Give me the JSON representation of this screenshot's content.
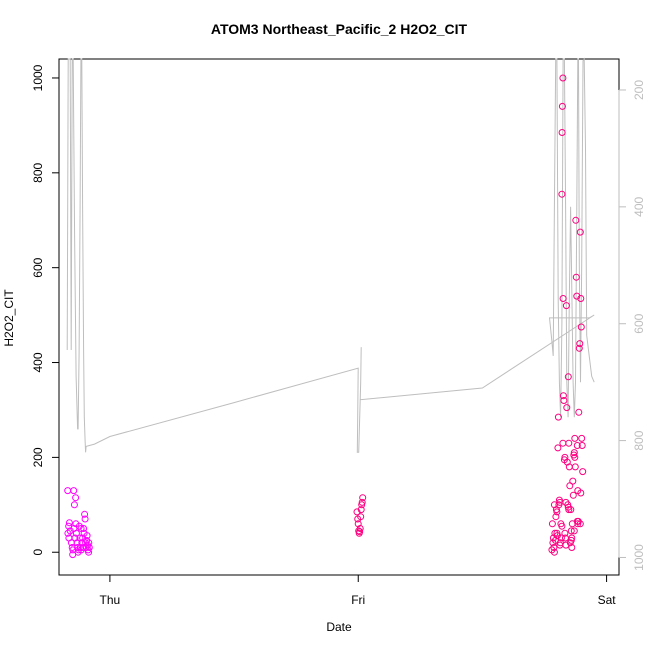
{
  "chart_data": {
    "type": "scatter",
    "title": "ATOM3 Northeast_Pacific_2 H2O2_CIT",
    "xlabel": "Date",
    "ylabel": "H2O2_CIT",
    "x_units": "days (Thu=0, Fri=1, Sat=2)",
    "xlim": [
      -0.205,
      2.05
    ],
    "ylim": [
      -48,
      1040
    ],
    "x_ticks": [
      {
        "value": 0,
        "label": "Thu"
      },
      {
        "value": 1,
        "label": "Fri"
      },
      {
        "value": 2,
        "label": "Sat"
      }
    ],
    "y_ticks": [
      0,
      200,
      400,
      600,
      800,
      1000
    ],
    "y2_label": "",
    "y2_reversed": true,
    "y2_ticks": [
      200,
      400,
      600,
      800,
      1000
    ],
    "y2_lim": [
      1030,
      147
    ],
    "grid": false,
    "legend": "none",
    "colors": {
      "points_early": "#ff00ff",
      "points_late": "#ff0080",
      "line": "#bebebe",
      "axis": "#000000"
    },
    "series": [
      {
        "kind": "points",
        "points": [
          [
            -0.17,
            130
          ],
          [
            -0.169,
            40
          ],
          [
            -0.166,
            55
          ],
          [
            -0.165,
            30
          ],
          [
            -0.163,
            62
          ],
          [
            -0.16,
            45
          ],
          [
            -0.155,
            20
          ],
          [
            -0.152,
            10
          ],
          [
            -0.15,
            -5
          ],
          [
            -0.149,
            5
          ],
          [
            -0.146,
            130
          ],
          [
            -0.145,
            50
          ],
          [
            -0.143,
            100
          ],
          [
            -0.14,
            30
          ],
          [
            -0.138,
            115
          ],
          [
            -0.137,
            60
          ],
          [
            -0.135,
            40
          ],
          [
            -0.132,
            20
          ],
          [
            -0.13,
            10
          ],
          [
            -0.128,
            0
          ],
          [
            -0.126,
            5
          ],
          [
            -0.123,
            55
          ],
          [
            -0.121,
            30
          ],
          [
            -0.119,
            10
          ],
          [
            -0.116,
            50
          ],
          [
            -0.115,
            5
          ],
          [
            -0.113,
            20
          ],
          [
            -0.11,
            30
          ],
          [
            -0.108,
            10
          ],
          [
            -0.106,
            50
          ],
          [
            -0.104,
            40
          ],
          [
            -0.102,
            80
          ],
          [
            -0.1,
            70
          ],
          [
            -0.098,
            20
          ],
          [
            -0.096,
            10
          ],
          [
            -0.094,
            25
          ],
          [
            -0.092,
            35
          ],
          [
            -0.09,
            15
          ],
          [
            -0.088,
            5
          ],
          [
            -0.086,
            0
          ],
          [
            -0.085,
            20
          ],
          [
            -0.083,
            10
          ]
        ]
      },
      {
        "kind": "points",
        "points": [
          [
            0.995,
            85
          ],
          [
            0.998,
            70
          ],
          [
            1.0,
            60
          ],
          [
            1.002,
            45
          ],
          [
            1.004,
            40
          ],
          [
            1.006,
            43
          ],
          [
            1.008,
            50
          ],
          [
            1.01,
            75
          ],
          [
            1.012,
            90
          ],
          [
            1.014,
            100
          ],
          [
            1.016,
            105
          ],
          [
            1.018,
            115
          ]
        ]
      },
      {
        "kind": "points",
        "points": [
          [
            1.78,
            5
          ],
          [
            1.782,
            60
          ],
          [
            1.784,
            20
          ],
          [
            1.786,
            30
          ],
          [
            1.788,
            10
          ],
          [
            1.79,
            0
          ],
          [
            1.792,
            40
          ],
          [
            1.794,
            25
          ],
          [
            1.796,
            75
          ],
          [
            1.798,
            90
          ],
          [
            1.8,
            85
          ],
          [
            1.802,
            35
          ],
          [
            1.804,
            220
          ],
          [
            1.806,
            285
          ],
          [
            1.808,
            100
          ],
          [
            1.81,
            110
          ],
          [
            1.812,
            105
          ],
          [
            1.814,
            20
          ],
          [
            1.816,
            60
          ],
          [
            1.818,
            30
          ],
          [
            1.82,
            755
          ],
          [
            1.821,
            885
          ],
          [
            1.822,
            940
          ],
          [
            1.824,
            1000
          ],
          [
            1.825,
            535
          ],
          [
            1.826,
            330
          ],
          [
            1.828,
            320
          ],
          [
            1.83,
            195
          ],
          [
            1.832,
            40
          ],
          [
            1.834,
            30
          ],
          [
            1.836,
            15
          ],
          [
            1.838,
            520
          ],
          [
            1.84,
            305
          ],
          [
            1.842,
            190
          ],
          [
            1.844,
            100
          ],
          [
            1.846,
            370
          ],
          [
            1.848,
            230
          ],
          [
            1.85,
            180
          ],
          [
            1.852,
            140
          ],
          [
            1.854,
            20
          ],
          [
            1.856,
            90
          ],
          [
            1.858,
            45
          ],
          [
            1.86,
            10
          ],
          [
            1.862,
            60
          ],
          [
            1.864,
            150
          ],
          [
            1.866,
            120
          ],
          [
            1.868,
            205
          ],
          [
            1.87,
            210
          ],
          [
            1.872,
            240
          ],
          [
            1.874,
            180
          ],
          [
            1.876,
            700
          ],
          [
            1.878,
            580
          ],
          [
            1.88,
            540
          ],
          [
            1.882,
            225
          ],
          [
            1.884,
            60
          ],
          [
            1.886,
            65
          ],
          [
            1.888,
            295
          ],
          [
            1.89,
            430
          ],
          [
            1.892,
            440
          ],
          [
            1.894,
            675
          ],
          [
            1.896,
            535
          ],
          [
            1.898,
            475
          ],
          [
            1.9,
            240
          ],
          [
            1.902,
            225
          ],
          [
            1.904,
            170
          ],
          [
            1.79,
            100
          ],
          [
            1.8,
            40
          ],
          [
            1.812,
            15
          ],
          [
            1.824,
            230
          ],
          [
            1.836,
            105
          ],
          [
            1.848,
            90
          ],
          [
            1.86,
            30
          ],
          [
            1.872,
            200
          ],
          [
            1.884,
            130
          ],
          [
            1.896,
            125
          ],
          [
            1.82,
            55
          ],
          [
            1.832,
            200
          ],
          [
            1.846,
            95
          ],
          [
            1.858,
            25
          ],
          [
            1.87,
            45
          ],
          [
            1.882,
            65
          ],
          [
            1.894,
            60
          ]
        ]
      },
      {
        "kind": "line",
        "axis": "y2",
        "points": [
          [
            -0.172,
            645
          ],
          [
            -0.17,
            400
          ],
          [
            -0.168,
            147
          ],
          [
            -0.165,
            147
          ],
          [
            -0.16,
            147
          ],
          [
            -0.158,
            400
          ],
          [
            -0.156,
            645
          ],
          [
            -0.154,
            400
          ],
          [
            -0.152,
            147
          ],
          [
            -0.148,
            147
          ],
          [
            -0.142,
            450
          ],
          [
            -0.136,
            690
          ],
          [
            -0.13,
            780
          ],
          [
            -0.128,
            780
          ],
          [
            -0.124,
            650
          ],
          [
            -0.12,
            400
          ],
          [
            -0.117,
            147
          ],
          [
            -0.113,
            147
          ],
          [
            -0.11,
            400
          ],
          [
            -0.106,
            645
          ],
          [
            -0.103,
            760
          ],
          [
            -0.1,
            800
          ],
          [
            -0.098,
            820
          ],
          [
            -0.096,
            810
          ],
          [
            -0.062,
            806
          ],
          [
            0.0,
            793
          ],
          [
            0.5,
            735
          ],
          [
            1.0,
            676
          ],
          [
            0.998,
            760
          ],
          [
            0.996,
            820
          ],
          [
            1.002,
            820
          ],
          [
            1.006,
            760
          ],
          [
            1.01,
            700
          ],
          [
            1.012,
            640
          ],
          [
            1.01,
            700
          ],
          [
            1.008,
            730
          ],
          [
            1.5,
            710
          ],
          [
            1.95,
            585
          ],
          [
            1.93,
            590
          ],
          [
            1.77,
            590
          ],
          [
            1.78,
            630
          ],
          [
            1.785,
            655
          ],
          [
            1.79,
            400
          ],
          [
            1.795,
            147
          ],
          [
            1.8,
            147
          ],
          [
            1.805,
            560
          ],
          [
            1.81,
            700
          ],
          [
            1.815,
            760
          ],
          [
            1.82,
            600
          ],
          [
            1.825,
            147
          ],
          [
            1.83,
            147
          ],
          [
            1.835,
            400
          ],
          [
            1.84,
            700
          ],
          [
            1.845,
            760
          ],
          [
            1.85,
            560
          ],
          [
            1.855,
            400
          ],
          [
            1.86,
            540
          ],
          [
            1.865,
            700
          ],
          [
            1.87,
            760
          ],
          [
            1.875,
            700
          ],
          [
            1.88,
            400
          ],
          [
            1.884,
            147
          ],
          [
            1.887,
            147
          ],
          [
            1.89,
            500
          ],
          [
            1.895,
            700
          ],
          [
            1.9,
            500
          ],
          [
            1.905,
            150
          ],
          [
            1.91,
            147
          ],
          [
            1.915,
            300
          ],
          [
            1.92,
            620
          ],
          [
            1.94,
            690
          ],
          [
            1.95,
            700
          ]
        ]
      }
    ]
  }
}
